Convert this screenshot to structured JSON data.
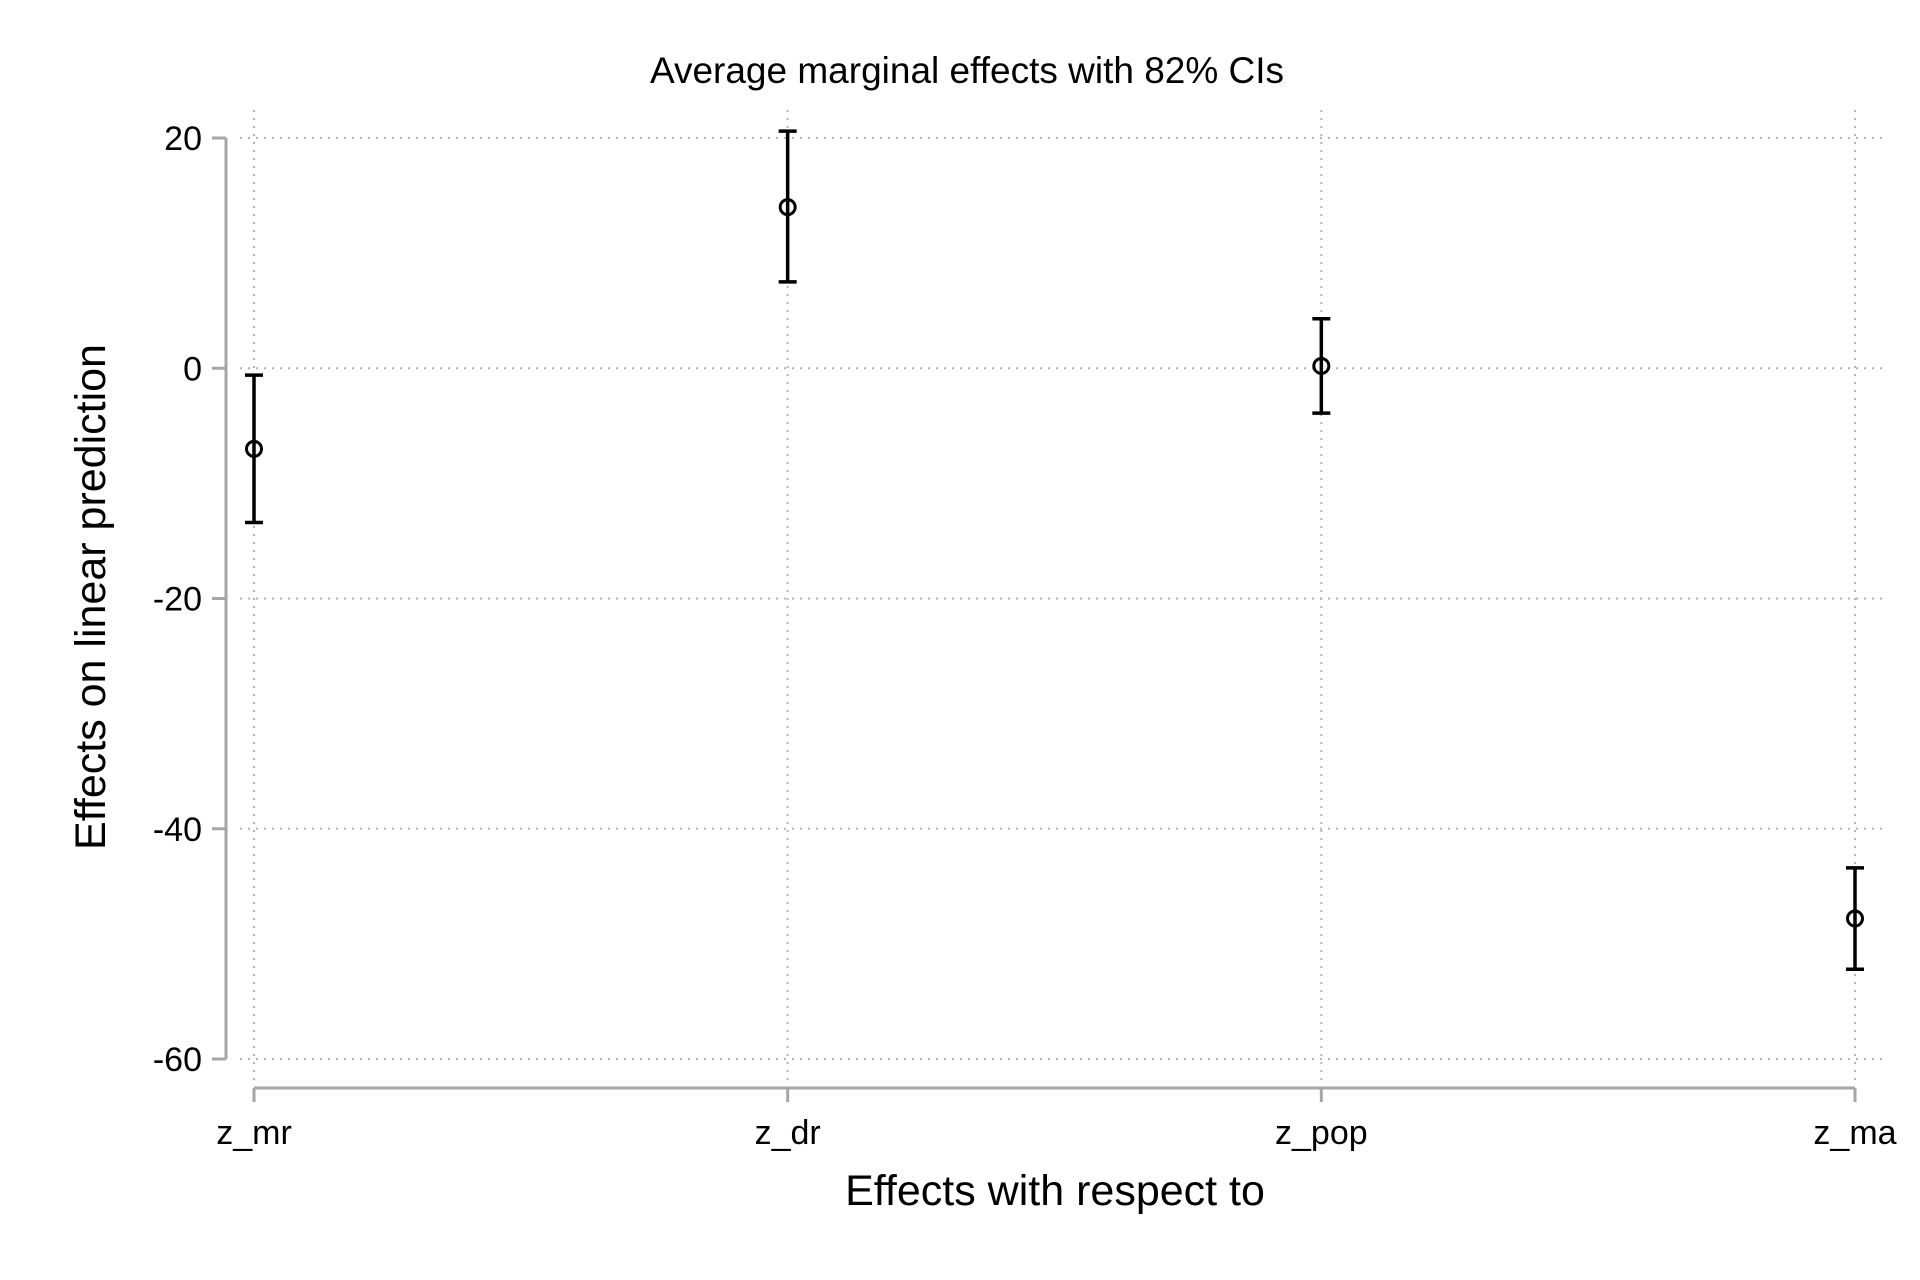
{
  "chart_data": {
    "type": "scatter",
    "title": "Average marginal effects with 82% CIs",
    "xlabel": "Effects with respect to",
    "ylabel": "Effects on linear prediction",
    "categories": [
      "z_mr",
      "z_dr",
      "z_pop",
      "z_ma"
    ],
    "estimates": [
      -7.0,
      14.0,
      0.2,
      -47.8
    ],
    "ci_lower": [
      -13.4,
      7.5,
      -3.9,
      -52.2
    ],
    "ci_upper": [
      -0.6,
      20.6,
      4.3,
      -43.4
    ],
    "y_ticks": [
      20,
      0,
      -20,
      -40,
      -60
    ],
    "y_tick_labels": [
      "20",
      "0",
      "-20",
      "-40",
      "-60"
    ],
    "ylim": [
      -60,
      20
    ],
    "grid": true,
    "legend": false,
    "colors": {
      "marker": "#000000",
      "ci": "#000000",
      "grid": "#b4b4b4",
      "axis": "#a6a6a6",
      "background": "#ffffff"
    }
  }
}
